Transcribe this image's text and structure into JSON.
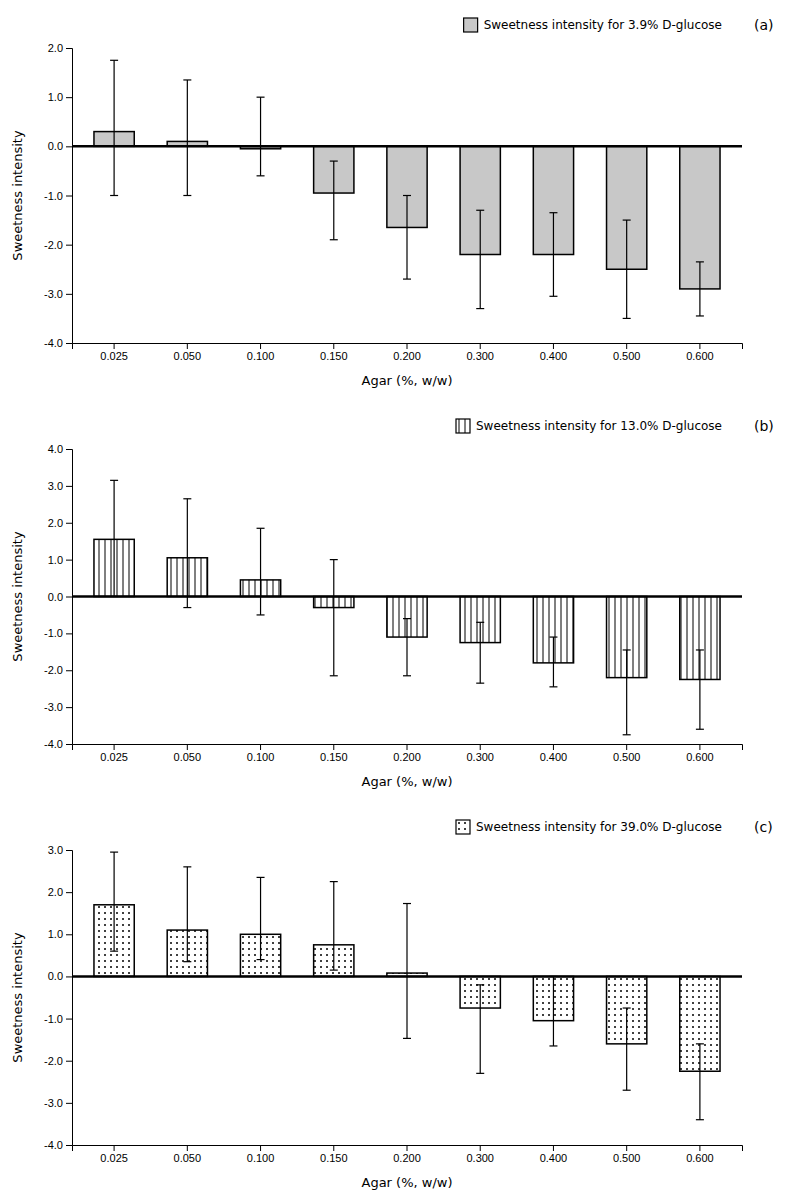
{
  "chart_data": [
    {
      "type": "bar",
      "categories": [
        "0.025",
        "0.050",
        "0.100",
        "0.150",
        "0.200",
        "0.300",
        "0.400",
        "0.500",
        "0.600"
      ],
      "series": [
        {
          "name": "Sweetness intensity for 3.9% D-glucose",
          "color": "#c8c8c8",
          "values": [
            0.3,
            0.1,
            -0.05,
            -0.95,
            -1.65,
            -2.2,
            -2.2,
            -2.5,
            -2.9
          ],
          "err_upper": [
            1.45,
            1.25,
            1.05,
            0.65,
            0.65,
            0.9,
            0.85,
            1.0,
            0.55
          ],
          "err_lower": [
            1.3,
            1.1,
            0.55,
            0.95,
            1.05,
            1.1,
            0.85,
            1.0,
            0.55
          ]
        }
      ],
      "x_label": "Agar (%, w/w)",
      "y_label": "Sweetness intensity",
      "annotations": [
        "(a)"
      ],
      "ylim": [
        -4.0,
        2.0
      ],
      "yticks": [
        {
          "value": -4.0,
          "label": "-4.0"
        },
        {
          "value": -3.0,
          "label": "-3.0"
        },
        {
          "value": -2.0,
          "label": "-2.0"
        },
        {
          "value": -1.0,
          "label": "-1.0"
        },
        {
          "value": 0.0,
          "label": "0.0"
        },
        {
          "value": 1.0,
          "label": "1.0"
        },
        {
          "value": 2.0,
          "label": "2.0"
        }
      ],
      "grid": false,
      "legend": "upper right"
    },
    {
      "type": "bar",
      "categories": [
        "0.025",
        "0.050",
        "0.100",
        "0.150",
        "0.200",
        "0.300",
        "0.400",
        "0.500",
        "0.600"
      ],
      "series": [
        {
          "name": "Sweetness intensity for 13.0% D-glucose",
          "color": "#ffffff",
          "values": [
            1.55,
            1.05,
            0.45,
            -0.3,
            -1.1,
            -1.25,
            -1.8,
            -2.2,
            -2.25
          ],
          "err_upper": [
            1.6,
            1.6,
            1.4,
            1.3,
            0.5,
            0.55,
            0.7,
            0.75,
            0.8
          ],
          "err_lower": [
            1.55,
            1.35,
            0.95,
            1.85,
            1.05,
            1.1,
            0.65,
            1.55,
            1.35
          ]
        }
      ],
      "x_label": "Agar (%, w/w)",
      "y_label": "Sweetness intensity",
      "annotations": [
        "(b)"
      ],
      "ylim": [
        -4.0,
        4.0
      ],
      "yticks": [
        {
          "value": -4.0,
          "label": "-4.0"
        },
        {
          "value": -3.0,
          "label": "-3.0"
        },
        {
          "value": -2.0,
          "label": "-2.0"
        },
        {
          "value": -1.0,
          "label": "-1.0"
        },
        {
          "value": 0.0,
          "label": "0.0"
        },
        {
          "value": 1.0,
          "label": "1.0"
        },
        {
          "value": 2.0,
          "label": "2.0"
        },
        {
          "value": 3.0,
          "label": "3.0"
        },
        {
          "value": 4.0,
          "label": "4.0"
        }
      ],
      "grid": false,
      "legend": "upper right"
    },
    {
      "type": "bar",
      "categories": [
        "0.025",
        "0.050",
        "0.100",
        "0.150",
        "0.200",
        "0.300",
        "0.400",
        "0.500",
        "0.600"
      ],
      "series": [
        {
          "name": "Sweetness intensity for 39.0% D-glucose",
          "color": "#ffffff",
          "values": [
            1.7,
            1.1,
            1.0,
            0.75,
            0.08,
            -0.75,
            -1.05,
            -1.6,
            -2.25
          ],
          "err_upper": [
            1.25,
            1.5,
            1.35,
            1.5,
            1.65,
            0.55,
            1.05,
            0.85,
            0.65
          ],
          "err_lower": [
            1.1,
            0.75,
            0.6,
            0.6,
            1.55,
            1.55,
            0.6,
            1.1,
            1.15
          ]
        }
      ],
      "x_label": "Agar (%, w/w)",
      "y_label": "Sweetness intensity",
      "annotations": [
        "(c)"
      ],
      "ylim": [
        -4.0,
        3.0
      ],
      "yticks": [
        {
          "value": -4.0,
          "label": "-4.0"
        },
        {
          "value": -3.0,
          "label": "-3.0"
        },
        {
          "value": -2.0,
          "label": "-2.0"
        },
        {
          "value": -1.0,
          "label": "-1.0"
        },
        {
          "value": 0.0,
          "label": "0.0"
        },
        {
          "value": 1.0,
          "label": "1.0"
        },
        {
          "value": 2.0,
          "label": "2.0"
        },
        {
          "value": 3.0,
          "label": "3.0"
        }
      ],
      "grid": false,
      "legend": "upper right"
    }
  ]
}
